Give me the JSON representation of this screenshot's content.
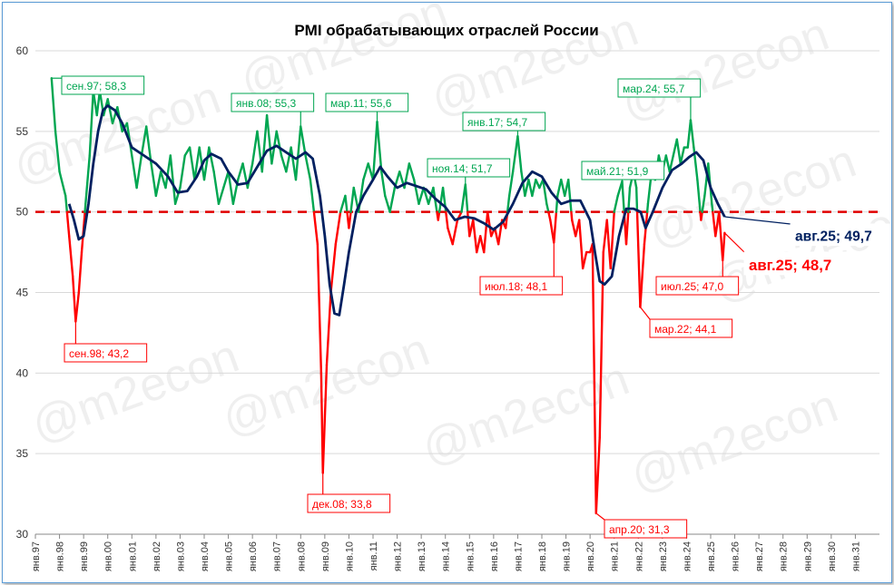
{
  "chart_data": {
    "type": "line",
    "title": "PMI обрабатывающих отраслей России",
    "watermark": "@m2econ",
    "threshold": 50,
    "ylim": [
      30,
      60
    ],
    "yticks": [
      30,
      35,
      40,
      45,
      50,
      55,
      60
    ],
    "xticks": [
      "янв.97",
      "янв.98",
      "янв.99",
      "янв.00",
      "янв.01",
      "янв.02",
      "янв.03",
      "янв.04",
      "янв.05",
      "янв.06",
      "янв.07",
      "янв.08",
      "янв.09",
      "янв.10",
      "янв.11",
      "янв.12",
      "янв.13",
      "янв.14",
      "янв.15",
      "янв.16",
      "янв.17",
      "янв.18",
      "янв.19",
      "янв.20",
      "янв.21",
      "янв.22",
      "янв.23",
      "янв.24",
      "янв.25",
      "янв.26",
      "янв.27",
      "янв.28",
      "янв.29",
      "янв.30",
      "янв.31"
    ],
    "colors": {
      "above": "#00a651",
      "below": "#ff0000",
      "average": "#002060",
      "threshold": "#e00000",
      "frame": "#5b9bd5"
    },
    "series": [
      {
        "role": "monthly",
        "points": [
          [
            1997.67,
            58.3
          ],
          [
            1997.83,
            55.0
          ],
          [
            1998.0,
            52.5
          ],
          [
            1998.25,
            51.0
          ],
          [
            1998.4,
            48.5
          ],
          [
            1998.55,
            46.0
          ],
          [
            1998.67,
            43.2
          ],
          [
            1998.8,
            45.0
          ],
          [
            1998.92,
            47.5
          ],
          [
            1999.08,
            50.5
          ],
          [
            1999.25,
            53.5
          ],
          [
            1999.4,
            57.5
          ],
          [
            1999.55,
            56.0
          ],
          [
            1999.67,
            57.5
          ],
          [
            1999.83,
            56.0
          ],
          [
            2000.0,
            57.0
          ],
          [
            2000.2,
            55.5
          ],
          [
            2000.4,
            56.5
          ],
          [
            2000.6,
            55.0
          ],
          [
            2000.8,
            55.5
          ],
          [
            2001.0,
            53.5
          ],
          [
            2001.2,
            51.5
          ],
          [
            2001.4,
            53.5
          ],
          [
            2001.6,
            55.3
          ],
          [
            2001.8,
            53.0
          ],
          [
            2002.0,
            51.0
          ],
          [
            2002.2,
            52.5
          ],
          [
            2002.4,
            51.5
          ],
          [
            2002.6,
            53.5
          ],
          [
            2002.8,
            50.5
          ],
          [
            2003.0,
            51.5
          ],
          [
            2003.2,
            53.5
          ],
          [
            2003.4,
            54.0
          ],
          [
            2003.6,
            52.0
          ],
          [
            2003.8,
            54.0
          ],
          [
            2004.0,
            52.0
          ],
          [
            2004.2,
            54.0
          ],
          [
            2004.4,
            52.5
          ],
          [
            2004.6,
            50.5
          ],
          [
            2004.8,
            51.5
          ],
          [
            2005.0,
            52.5
          ],
          [
            2005.2,
            50.5
          ],
          [
            2005.4,
            52.0
          ],
          [
            2005.6,
            53.0
          ],
          [
            2005.8,
            51.5
          ],
          [
            2006.0,
            53.0
          ],
          [
            2006.2,
            55.0
          ],
          [
            2006.4,
            52.5
          ],
          [
            2006.6,
            56.0
          ],
          [
            2006.8,
            53.0
          ],
          [
            2007.0,
            55.0
          ],
          [
            2007.2,
            53.5
          ],
          [
            2007.4,
            52.5
          ],
          [
            2007.6,
            54.0
          ],
          [
            2007.8,
            52.0
          ],
          [
            2008.0,
            55.3
          ],
          [
            2008.2,
            53.5
          ],
          [
            2008.4,
            52.0
          ],
          [
            2008.55,
            50.0
          ],
          [
            2008.7,
            48.0
          ],
          [
            2008.85,
            40.0
          ],
          [
            2008.92,
            33.8
          ],
          [
            2009.08,
            40.5
          ],
          [
            2009.25,
            45.0
          ],
          [
            2009.45,
            48.0
          ],
          [
            2009.65,
            50.0
          ],
          [
            2009.85,
            51.0
          ],
          [
            2010.0,
            49.0
          ],
          [
            2010.2,
            51.5
          ],
          [
            2010.4,
            50.0
          ],
          [
            2010.6,
            52.0
          ],
          [
            2010.8,
            53.0
          ],
          [
            2011.0,
            52.0
          ],
          [
            2011.17,
            55.6
          ],
          [
            2011.35,
            52.5
          ],
          [
            2011.5,
            51.0
          ],
          [
            2011.7,
            50.0
          ],
          [
            2011.9,
            51.5
          ],
          [
            2012.1,
            52.5
          ],
          [
            2012.3,
            51.5
          ],
          [
            2012.5,
            53.0
          ],
          [
            2012.7,
            52.0
          ],
          [
            2012.9,
            50.5
          ],
          [
            2013.1,
            51.5
          ],
          [
            2013.3,
            50.5
          ],
          [
            2013.5,
            51.5
          ],
          [
            2013.7,
            49.5
          ],
          [
            2013.9,
            51.5
          ],
          [
            2014.1,
            49.0
          ],
          [
            2014.3,
            48.0
          ],
          [
            2014.5,
            49.5
          ],
          [
            2014.67,
            50.0
          ],
          [
            2014.83,
            51.7
          ],
          [
            2015.0,
            48.5
          ],
          [
            2015.15,
            49.5
          ],
          [
            2015.3,
            47.5
          ],
          [
            2015.45,
            48.5
          ],
          [
            2015.6,
            47.5
          ],
          [
            2015.75,
            50.0
          ],
          [
            2015.9,
            48.5
          ],
          [
            2016.05,
            49.0
          ],
          [
            2016.2,
            48.0
          ],
          [
            2016.35,
            49.5
          ],
          [
            2016.5,
            49.0
          ],
          [
            2016.65,
            51.0
          ],
          [
            2016.8,
            52.5
          ],
          [
            2017.0,
            54.7
          ],
          [
            2017.15,
            52.5
          ],
          [
            2017.3,
            51.0
          ],
          [
            2017.45,
            52.0
          ],
          [
            2017.6,
            51.0
          ],
          [
            2017.75,
            52.0
          ],
          [
            2017.9,
            51.5
          ],
          [
            2018.05,
            52.0
          ],
          [
            2018.2,
            50.5
          ],
          [
            2018.35,
            49.5
          ],
          [
            2018.5,
            48.1
          ],
          [
            2018.65,
            51.0
          ],
          [
            2018.8,
            52.0
          ],
          [
            2018.95,
            51.0
          ],
          [
            2019.1,
            52.0
          ],
          [
            2019.25,
            49.5
          ],
          [
            2019.4,
            48.5
          ],
          [
            2019.55,
            49.5
          ],
          [
            2019.7,
            46.5
          ],
          [
            2019.85,
            47.5
          ],
          [
            2020.0,
            47.5
          ],
          [
            2020.1,
            48.0
          ],
          [
            2020.25,
            31.3
          ],
          [
            2020.4,
            36.0
          ],
          [
            2020.55,
            47.5
          ],
          [
            2020.7,
            49.5
          ],
          [
            2020.85,
            46.5
          ],
          [
            2021.0,
            50.0
          ],
          [
            2021.15,
            51.0
          ],
          [
            2021.33,
            51.9
          ],
          [
            2021.5,
            48.0
          ],
          [
            2021.65,
            51.5
          ],
          [
            2021.8,
            52.5
          ],
          [
            2021.92,
            51.5
          ],
          [
            2022.08,
            44.1
          ],
          [
            2022.25,
            48.0
          ],
          [
            2022.4,
            50.5
          ],
          [
            2022.55,
            52.5
          ],
          [
            2022.7,
            52.0
          ],
          [
            2022.85,
            53.5
          ],
          [
            2023.0,
            52.5
          ],
          [
            2023.15,
            53.5
          ],
          [
            2023.3,
            52.5
          ],
          [
            2023.45,
            53.5
          ],
          [
            2023.6,
            54.5
          ],
          [
            2023.75,
            53.0
          ],
          [
            2023.9,
            54.0
          ],
          [
            2024.05,
            54.0
          ],
          [
            2024.17,
            55.7
          ],
          [
            2024.3,
            54.0
          ],
          [
            2024.45,
            52.0
          ],
          [
            2024.6,
            49.5
          ],
          [
            2024.75,
            51.0
          ],
          [
            2024.9,
            53.0
          ],
          [
            2025.05,
            50.5
          ],
          [
            2025.2,
            48.5
          ],
          [
            2025.35,
            50.0
          ],
          [
            2025.5,
            47.0
          ],
          [
            2025.58,
            48.7
          ]
        ]
      },
      {
        "role": "average",
        "points": [
          [
            1998.4,
            50.5
          ],
          [
            1998.6,
            49.5
          ],
          [
            1998.8,
            48.3
          ],
          [
            1999.0,
            48.5
          ],
          [
            1999.2,
            50.5
          ],
          [
            1999.4,
            53.0
          ],
          [
            1999.6,
            55.0
          ],
          [
            1999.8,
            56.3
          ],
          [
            2000.0,
            56.6
          ],
          [
            2000.3,
            56.3
          ],
          [
            2000.6,
            55.5
          ],
          [
            2001.0,
            54.0
          ],
          [
            2001.5,
            53.5
          ],
          [
            2002.0,
            53.0
          ],
          [
            2002.5,
            52.2
          ],
          [
            2002.9,
            51.2
          ],
          [
            2003.3,
            51.3
          ],
          [
            2003.7,
            52.2
          ],
          [
            2004.0,
            53.2
          ],
          [
            2004.3,
            53.6
          ],
          [
            2004.7,
            53.3
          ],
          [
            2005.0,
            52.5
          ],
          [
            2005.4,
            51.7
          ],
          [
            2005.8,
            51.8
          ],
          [
            2006.2,
            52.8
          ],
          [
            2006.6,
            53.8
          ],
          [
            2007.0,
            54.1
          ],
          [
            2007.4,
            53.7
          ],
          [
            2007.8,
            53.3
          ],
          [
            2008.2,
            53.7
          ],
          [
            2008.5,
            53.3
          ],
          [
            2008.8,
            51.0
          ],
          [
            2009.0,
            48.5
          ],
          [
            2009.2,
            45.5
          ],
          [
            2009.4,
            43.7
          ],
          [
            2009.6,
            43.6
          ],
          [
            2009.8,
            45.5
          ],
          [
            2010.0,
            47.5
          ],
          [
            2010.3,
            50.0
          ],
          [
            2010.6,
            51.0
          ],
          [
            2011.0,
            52.0
          ],
          [
            2011.3,
            52.8
          ],
          [
            2011.6,
            52.2
          ],
          [
            2012.0,
            51.5
          ],
          [
            2012.4,
            51.8
          ],
          [
            2012.8,
            51.6
          ],
          [
            2013.2,
            51.4
          ],
          [
            2013.6,
            50.8
          ],
          [
            2014.0,
            50.3
          ],
          [
            2014.4,
            49.5
          ],
          [
            2014.8,
            49.7
          ],
          [
            2015.2,
            49.6
          ],
          [
            2015.6,
            49.3
          ],
          [
            2016.0,
            48.9
          ],
          [
            2016.4,
            49.4
          ],
          [
            2016.8,
            50.5
          ],
          [
            2017.2,
            51.8
          ],
          [
            2017.6,
            52.5
          ],
          [
            2018.0,
            52.2
          ],
          [
            2018.4,
            51.2
          ],
          [
            2018.8,
            50.5
          ],
          [
            2019.2,
            50.7
          ],
          [
            2019.6,
            50.7
          ],
          [
            2020.0,
            49.5
          ],
          [
            2020.2,
            47.5
          ],
          [
            2020.4,
            45.7
          ],
          [
            2020.6,
            45.5
          ],
          [
            2020.9,
            46.0
          ],
          [
            2021.2,
            48.5
          ],
          [
            2021.5,
            50.2
          ],
          [
            2021.8,
            50.2
          ],
          [
            2022.1,
            50.0
          ],
          [
            2022.3,
            49.0
          ],
          [
            2022.6,
            50.0
          ],
          [
            2023.0,
            51.5
          ],
          [
            2023.4,
            52.6
          ],
          [
            2023.8,
            53.0
          ],
          [
            2024.1,
            53.4
          ],
          [
            2024.4,
            53.7
          ],
          [
            2024.7,
            53.2
          ],
          [
            2025.0,
            51.5
          ],
          [
            2025.3,
            50.5
          ],
          [
            2025.58,
            49.7
          ]
        ]
      }
    ],
    "annotations": [
      {
        "text": "сен.97; 58,3",
        "x": 1997.67,
        "y": 58.3,
        "color": "green"
      },
      {
        "text": "сен.98; 43,2",
        "x": 1998.67,
        "y": 43.2,
        "color": "red"
      },
      {
        "text": "янв.08; 55,3",
        "x": 2008.0,
        "y": 55.3,
        "color": "green"
      },
      {
        "text": "дек.08; 33,8",
        "x": 2008.92,
        "y": 33.8,
        "color": "red"
      },
      {
        "text": "мар.11; 55,6",
        "x": 2011.17,
        "y": 55.6,
        "color": "green"
      },
      {
        "text": "ноя.14; 51,7",
        "x": 2014.83,
        "y": 51.7,
        "color": "green"
      },
      {
        "text": "янв.17; 54,7",
        "x": 2017.0,
        "y": 54.7,
        "color": "green"
      },
      {
        "text": "июл.18; 48,1",
        "x": 2018.5,
        "y": 48.1,
        "color": "red"
      },
      {
        "text": "апр.20; 31,3",
        "x": 2020.25,
        "y": 31.3,
        "color": "red"
      },
      {
        "text": "май.21; 51,9",
        "x": 2021.33,
        "y": 51.9,
        "color": "green"
      },
      {
        "text": "мар.22; 44,1",
        "x": 2022.08,
        "y": 44.1,
        "color": "red"
      },
      {
        "text": "мар.24; 55,7",
        "x": 2024.17,
        "y": 55.7,
        "color": "green"
      },
      {
        "text": "июл.25; 47,0",
        "x": 2025.5,
        "y": 47.0,
        "color": "red"
      },
      {
        "text": "авг.25; 49,7",
        "x": 2025.58,
        "y": 49.7,
        "color": "navy"
      },
      {
        "text": "авг.25; 48,7",
        "x": 2025.58,
        "y": 48.7,
        "color": "red"
      }
    ]
  }
}
